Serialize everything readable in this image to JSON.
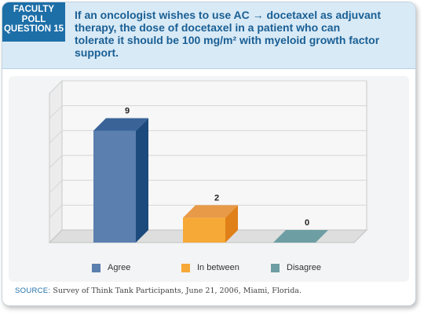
{
  "header": {
    "badge_lines": [
      "FACULTY",
      "POLL",
      "QUESTION 15"
    ],
    "question_line1": "If an oncologist wishes to use AC → docetaxel as adjuvant",
    "question_line2": "therapy, the dose of docetaxel in a patient who can",
    "question_line3": "tolerate it should be 100 mg/m² with myeloid growth factor",
    "question_line4": "support."
  },
  "source": {
    "label": "SOURCE:",
    "text": "Survey of Think Tank Participants, June 21, 2006, Miami, Florida."
  },
  "colors": {
    "accent": "#1d6fa8",
    "header_bg": "#d8eaf6"
  },
  "chart_data": {
    "type": "bar",
    "categories": [
      "Agree",
      "In between",
      "Disagree"
    ],
    "values": [
      9,
      2,
      0
    ],
    "ylim": [
      0,
      12
    ],
    "grid": true,
    "legend_position": "bottom",
    "series_colors": [
      {
        "front": "#5b7fae",
        "side": "#1d4a7c",
        "top": "#3a6498"
      },
      {
        "front": "#f6a936",
        "side": "#e08018",
        "top": "#e89a48"
      },
      {
        "front": "#6d9ea3",
        "side": "#4f8185",
        "top": "#6d9ea3"
      }
    ]
  }
}
